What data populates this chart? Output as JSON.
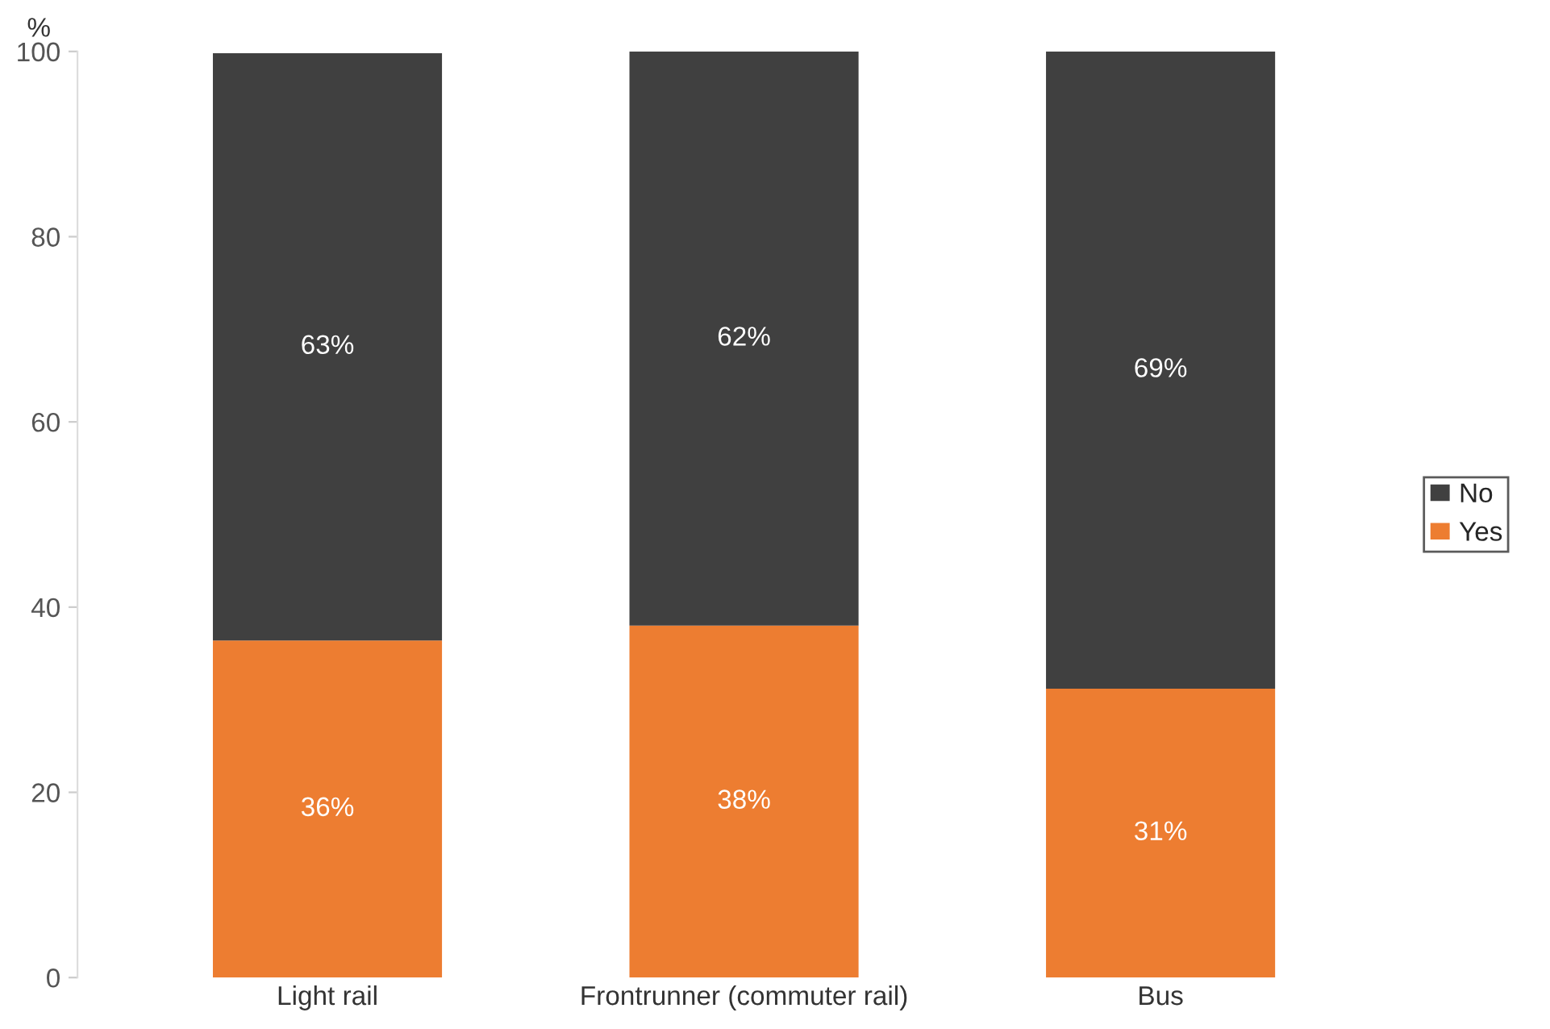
{
  "chart_data": {
    "type": "bar",
    "stacked": true,
    "ylabel": "%",
    "categories": [
      "Light rail",
      "Frontrunner (commuter rail)",
      "Bus"
    ],
    "series": [
      {
        "name": "Yes",
        "color": "#ed7d31",
        "values": [
          36.4,
          38,
          31.2
        ],
        "value_labels": [
          "36%",
          "38%",
          "31%"
        ]
      },
      {
        "name": "No",
        "color": "#404040",
        "values": [
          63.4,
          62,
          68.8
        ],
        "value_labels": [
          "63%",
          "62%",
          "69%"
        ]
      }
    ],
    "ylim": [
      0,
      100
    ],
    "yticks": [
      0,
      20,
      40,
      60,
      80,
      100
    ],
    "grid": false,
    "legend": "right"
  }
}
